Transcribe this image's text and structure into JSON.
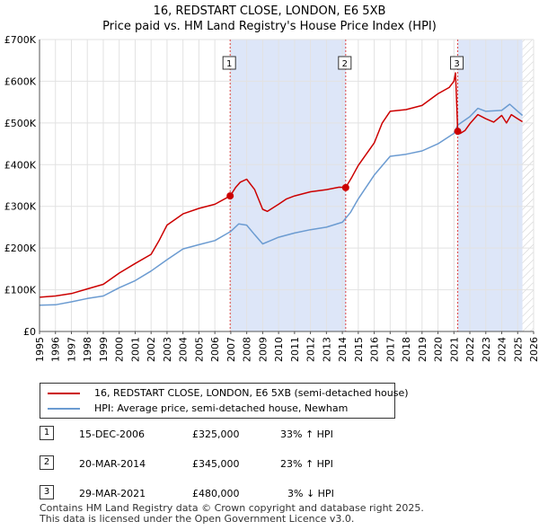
{
  "title_line1": "16, REDSTART CLOSE, LONDON, E6 5XB",
  "title_line2": "Price paid vs. HM Land Registry's House Price Index (HPI)",
  "colors": {
    "property": "#cc0000",
    "hpi": "#6b9bd1",
    "shade": "#dde6f8",
    "marker_line": "#dd4444"
  },
  "chart_data": {
    "type": "line",
    "title": "16, REDSTART CLOSE, LONDON, E6 5XB — Price paid vs. HM Land Registry's House Price Index (HPI)",
    "xlim": [
      1995,
      2026
    ],
    "ylim": [
      0,
      700000
    ],
    "y_ticks": [
      {
        "value": 0,
        "label": "£0"
      },
      {
        "value": 100000,
        "label": "£100K"
      },
      {
        "value": 200000,
        "label": "£200K"
      },
      {
        "value": 300000,
        "label": "£300K"
      },
      {
        "value": 400000,
        "label": "£400K"
      },
      {
        "value": 500000,
        "label": "£500K"
      },
      {
        "value": 600000,
        "label": "£600K"
      },
      {
        "value": 700000,
        "label": "£700K"
      }
    ],
    "x_ticks": [
      "1995",
      "1996",
      "1997",
      "1998",
      "1999",
      "2000",
      "2001",
      "2002",
      "2003",
      "2004",
      "2005",
      "2006",
      "2007",
      "2008",
      "2009",
      "2010",
      "2011",
      "2012",
      "2013",
      "2014",
      "2015",
      "2016",
      "2017",
      "2018",
      "2019",
      "2020",
      "2021",
      "2022",
      "2023",
      "2024",
      "2025",
      "2026"
    ],
    "shaded_periods": [
      [
        2006.96,
        2014.21
      ],
      [
        2021.24,
        2025.3
      ]
    ],
    "hatched_from": 2025.3,
    "series": [
      {
        "name": "16, REDSTART CLOSE, LONDON, E6 5XB (semi-detached house)",
        "color": "#cc0000",
        "points": [
          [
            1995.0,
            82000
          ],
          [
            1996.0,
            85000
          ],
          [
            1997.0,
            91000
          ],
          [
            1998.0,
            102000
          ],
          [
            1999.0,
            113000
          ],
          [
            2000.0,
            140000
          ],
          [
            2001.0,
            163000
          ],
          [
            2002.0,
            185000
          ],
          [
            2002.5,
            218000
          ],
          [
            2003.0,
            255000
          ],
          [
            2004.0,
            282000
          ],
          [
            2005.0,
            295000
          ],
          [
            2006.0,
            305000
          ],
          [
            2006.96,
            325000
          ],
          [
            2007.3,
            345000
          ],
          [
            2007.6,
            358000
          ],
          [
            2008.0,
            365000
          ],
          [
            2008.5,
            340000
          ],
          [
            2008.8,
            312000
          ],
          [
            2009.0,
            293000
          ],
          [
            2009.3,
            288000
          ],
          [
            2010.0,
            305000
          ],
          [
            2010.5,
            318000
          ],
          [
            2011.0,
            325000
          ],
          [
            2012.0,
            335000
          ],
          [
            2013.0,
            340000
          ],
          [
            2013.8,
            346000
          ],
          [
            2014.21,
            345000
          ],
          [
            2014.6,
            370000
          ],
          [
            2015.0,
            398000
          ],
          [
            2016.0,
            452000
          ],
          [
            2016.5,
            500000
          ],
          [
            2017.0,
            528000
          ],
          [
            2018.0,
            532000
          ],
          [
            2019.0,
            542000
          ],
          [
            2020.0,
            570000
          ],
          [
            2020.7,
            585000
          ],
          [
            2021.0,
            600000
          ],
          [
            2021.1,
            620000
          ],
          [
            2021.24,
            480000
          ],
          [
            2021.4,
            475000
          ],
          [
            2021.7,
            482000
          ],
          [
            2022.0,
            498000
          ],
          [
            2022.5,
            520000
          ],
          [
            2023.0,
            510000
          ],
          [
            2023.5,
            502000
          ],
          [
            2024.0,
            518000
          ],
          [
            2024.3,
            500000
          ],
          [
            2024.6,
            520000
          ],
          [
            2025.0,
            510000
          ],
          [
            2025.3,
            503000
          ]
        ]
      },
      {
        "name": "HPI: Average price, semi-detached house, Newham",
        "color": "#6b9bd1",
        "points": [
          [
            1995.0,
            63000
          ],
          [
            1996.0,
            64000
          ],
          [
            1997.0,
            71000
          ],
          [
            1998.0,
            79000
          ],
          [
            1999.0,
            85000
          ],
          [
            2000.0,
            105000
          ],
          [
            2001.0,
            122000
          ],
          [
            2002.0,
            145000
          ],
          [
            2003.0,
            172000
          ],
          [
            2004.0,
            198000
          ],
          [
            2005.0,
            208000
          ],
          [
            2006.0,
            218000
          ],
          [
            2007.0,
            240000
          ],
          [
            2007.5,
            258000
          ],
          [
            2008.0,
            255000
          ],
          [
            2008.5,
            232000
          ],
          [
            2009.0,
            210000
          ],
          [
            2009.5,
            218000
          ],
          [
            2010.0,
            226000
          ],
          [
            2011.0,
            236000
          ],
          [
            2012.0,
            244000
          ],
          [
            2013.0,
            250000
          ],
          [
            2014.0,
            262000
          ],
          [
            2014.5,
            285000
          ],
          [
            2015.0,
            318000
          ],
          [
            2016.0,
            375000
          ],
          [
            2017.0,
            420000
          ],
          [
            2018.0,
            425000
          ],
          [
            2019.0,
            433000
          ],
          [
            2020.0,
            450000
          ],
          [
            2021.0,
            475000
          ],
          [
            2021.24,
            495000
          ],
          [
            2022.0,
            515000
          ],
          [
            2022.5,
            535000
          ],
          [
            2023.0,
            528000
          ],
          [
            2024.0,
            530000
          ],
          [
            2024.5,
            545000
          ],
          [
            2025.0,
            528000
          ],
          [
            2025.3,
            518000
          ]
        ]
      }
    ],
    "transactions": [
      {
        "num": "1",
        "x": 2006.96,
        "price": 325000
      },
      {
        "num": "2",
        "x": 2014.21,
        "price": 345000
      },
      {
        "num": "3",
        "x": 2021.24,
        "price": 480000
      }
    ]
  },
  "legend": {
    "property_label": "16, REDSTART CLOSE, LONDON, E6 5XB (semi-detached house)",
    "hpi_label": "HPI: Average price, semi-detached house, Newham"
  },
  "transactions_table": [
    {
      "num": "1",
      "date": "15-DEC-2006",
      "price": "£325,000",
      "hpi": "33% ↑ HPI"
    },
    {
      "num": "2",
      "date": "20-MAR-2014",
      "price": "£345,000",
      "hpi": "23% ↑ HPI"
    },
    {
      "num": "3",
      "date": "29-MAR-2021",
      "price": "£480,000",
      "hpi": "3% ↓ HPI"
    }
  ],
  "footer_line1": "Contains HM Land Registry data © Crown copyright and database right 2025.",
  "footer_line2": "This data is licensed under the Open Government Licence v3.0."
}
